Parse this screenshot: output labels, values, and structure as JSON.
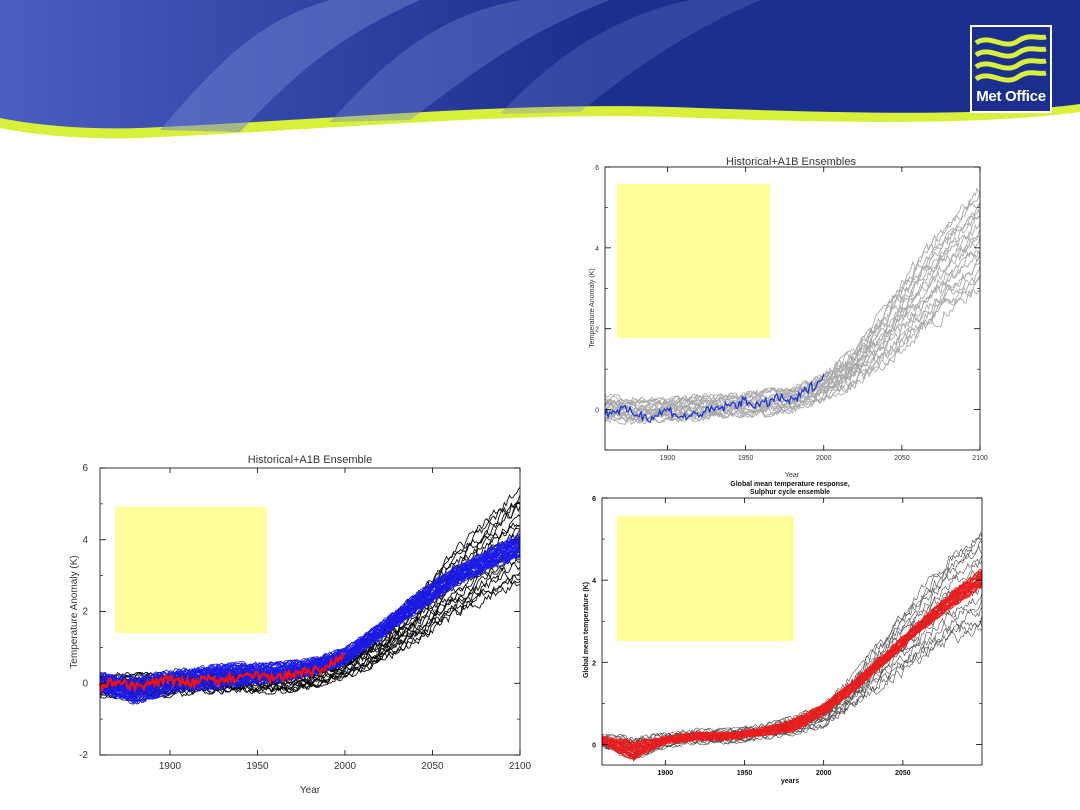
{
  "header": {
    "logo_text": "Met Office",
    "colors": {
      "banner_dark": "#1b2f8f",
      "banner_light": "#4a5dc0",
      "accent_green": "#d8f03a"
    }
  },
  "chart_data": [
    {
      "type": "line",
      "title": "Historical+A1B Ensembles",
      "xlabel": "Year",
      "ylabel": "Temperature Anomaly (K)",
      "xlim": [
        1860,
        2100
      ],
      "ylim": [
        -1,
        6
      ],
      "xticks": [
        1900,
        1950,
        2000,
        2050,
        2100
      ],
      "yticks": [
        0,
        2,
        4,
        6
      ],
      "grid": false,
      "overlay_box": {
        "color": "#ffff99"
      },
      "series": [
        {
          "color": "#a6a6a6",
          "count": 20,
          "x": [
            1860,
            1880,
            1900,
            1920,
            1940,
            1960,
            1980,
            2000,
            2020,
            2040,
            2060,
            2080,
            2100
          ],
          "y_low": [
            -0.3,
            -0.4,
            -0.3,
            -0.3,
            -0.2,
            -0.2,
            -0.1,
            0.2,
            0.5,
            1.0,
            1.6,
            2.2,
            2.7
          ],
          "y_high": [
            0.4,
            0.3,
            0.3,
            0.4,
            0.4,
            0.5,
            0.6,
            0.9,
            1.6,
            2.7,
            3.9,
            4.9,
            5.8
          ]
        },
        {
          "color": "#1a33d6",
          "x": [
            1860,
            1870,
            1880,
            1890,
            1900,
            1910,
            1920,
            1930,
            1940,
            1950,
            1960,
            1970,
            1980,
            1990,
            2000
          ],
          "y": [
            -0.1,
            0.0,
            -0.1,
            -0.2,
            0.0,
            -0.2,
            -0.1,
            0.0,
            0.1,
            0.2,
            0.1,
            0.3,
            0.2,
            0.5,
            0.8
          ]
        }
      ]
    },
    {
      "type": "line",
      "title": "Historical+A1B Ensemble",
      "xlabel": "Year",
      "ylabel": "Temperature Anomaly (K)",
      "xlim": [
        1860,
        2100
      ],
      "ylim": [
        -2,
        6
      ],
      "xticks": [
        1900,
        1950,
        2000,
        2050,
        2100
      ],
      "yticks": [
        -2,
        0,
        2,
        4,
        6
      ],
      "grid": false,
      "overlay_box": {
        "color": "#ffff99"
      },
      "series": [
        {
          "color": "#000000",
          "count": 20,
          "x": [
            1860,
            1880,
            1900,
            1920,
            1940,
            1960,
            1980,
            2000,
            2020,
            2040,
            2060,
            2080,
            2100
          ],
          "y_low": [
            -0.4,
            -0.5,
            -0.4,
            -0.3,
            -0.3,
            -0.3,
            -0.2,
            0.1,
            0.5,
            1.0,
            1.6,
            2.1,
            2.4
          ],
          "y_high": [
            0.3,
            0.3,
            0.3,
            0.4,
            0.4,
            0.4,
            0.5,
            0.8,
            1.6,
            2.6,
            3.7,
            4.7,
            5.7
          ]
        },
        {
          "color": "#1a1ae6",
          "count": 40,
          "x": [
            1860,
            1880,
            1900,
            1920,
            1940,
            1960,
            1980,
            2000,
            2020,
            2040,
            2060,
            2080,
            2100
          ],
          "y_low": [
            -0.3,
            -0.6,
            -0.3,
            -0.2,
            -0.1,
            0.0,
            0.2,
            0.5,
            1.2,
            1.9,
            2.6,
            3.1,
            3.5
          ],
          "y_high": [
            0.3,
            0.2,
            0.4,
            0.5,
            0.6,
            0.6,
            0.7,
            1.0,
            1.7,
            2.5,
            3.2,
            3.7,
            4.2
          ]
        },
        {
          "color": "#ee1111",
          "x": [
            1860,
            1870,
            1880,
            1890,
            1900,
            1910,
            1920,
            1930,
            1940,
            1950,
            1960,
            1970,
            1980,
            1990,
            2000
          ],
          "y": [
            -0.1,
            0.1,
            -0.1,
            0.0,
            0.1,
            0.0,
            0.1,
            0.1,
            0.2,
            0.2,
            0.1,
            0.3,
            0.3,
            0.5,
            0.8
          ]
        }
      ]
    },
    {
      "type": "line",
      "title": "Global mean temperature response,\nSulphur cycle ensemble",
      "xlabel": "years",
      "ylabel": "Global mean temperature (K)",
      "xlim": [
        1860,
        2100
      ],
      "ylim": [
        -0.5,
        6
      ],
      "xticks": [
        1900,
        1950,
        2000,
        2050
      ],
      "yticks": [
        0,
        2,
        4,
        6
      ],
      "grid": false,
      "overlay_box": {
        "color": "#ffff99"
      },
      "series": [
        {
          "color": "#444444",
          "count": 16,
          "x": [
            1860,
            1880,
            1900,
            1920,
            1940,
            1960,
            1980,
            2000,
            2020,
            2040,
            2060,
            2080,
            2100
          ],
          "y_low": [
            -0.1,
            -0.4,
            -0.1,
            0.0,
            0.0,
            0.1,
            0.2,
            0.4,
            0.9,
            1.4,
            1.9,
            2.3,
            2.5
          ],
          "y_high": [
            0.3,
            0.2,
            0.3,
            0.4,
            0.4,
            0.5,
            0.7,
            1.0,
            1.8,
            2.8,
            3.8,
            4.8,
            5.5
          ]
        },
        {
          "color": "#e81e1e",
          "count": 30,
          "x": [
            1860,
            1880,
            1900,
            1920,
            1940,
            1960,
            1980,
            2000,
            2020,
            2040,
            2060,
            2080,
            2100
          ],
          "y_low": [
            0.0,
            -0.4,
            0.0,
            0.1,
            0.1,
            0.2,
            0.3,
            0.7,
            1.3,
            2.0,
            2.7,
            3.3,
            3.8
          ],
          "y_high": [
            0.2,
            0.1,
            0.2,
            0.3,
            0.3,
            0.4,
            0.6,
            1.0,
            1.6,
            2.3,
            3.0,
            3.7,
            4.3
          ]
        }
      ]
    }
  ]
}
